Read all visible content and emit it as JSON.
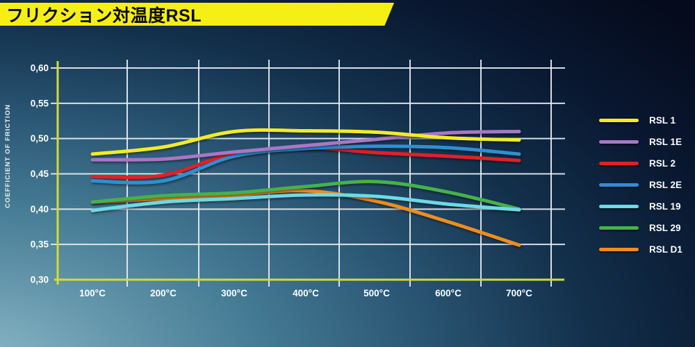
{
  "header": {
    "title": "フリクション対温度RSL"
  },
  "chart_data": {
    "type": "line",
    "title": "フリクション対温度RSL",
    "xlabel": "",
    "ylabel": "COEFFICIENT OF FRICTION",
    "x": [
      100,
      200,
      300,
      400,
      500,
      600,
      700
    ],
    "x_tick_labels": [
      "100°C",
      "200°C",
      "300°C",
      "400°C",
      "500°C",
      "600°C",
      "700°C"
    ],
    "y_ticks": [
      0.6,
      0.55,
      0.5,
      0.45,
      0.4,
      0.35,
      0.3
    ],
    "y_tick_labels": [
      "0,60",
      "0,55",
      "0,50",
      "0,45",
      "0,40",
      "0,35",
      "0,30"
    ],
    "ylim": [
      0.3,
      0.6
    ],
    "grid": "white gridlines, both axes",
    "legend_position": "right",
    "axis_color": "#d8dc2b",
    "series": [
      {
        "name": "RSL 1",
        "color": "#f2ec25",
        "values": [
          0.478,
          0.488,
          0.51,
          0.511,
          0.509,
          0.501,
          0.498
        ]
      },
      {
        "name": "RSL 1E",
        "color": "#a877c4",
        "values": [
          0.47,
          0.471,
          0.481,
          0.49,
          0.499,
          0.508,
          0.51
        ]
      },
      {
        "name": "RSL 2",
        "color": "#e0202a",
        "values": [
          0.446,
          0.448,
          0.479,
          0.487,
          0.48,
          0.475,
          0.469
        ]
      },
      {
        "name": "RSL 2E",
        "color": "#2e8fd4",
        "values": [
          0.44,
          0.44,
          0.475,
          0.486,
          0.489,
          0.487,
          0.478
        ]
      },
      {
        "name": "RSL 19",
        "color": "#6fd9e6",
        "values": [
          0.398,
          0.41,
          0.415,
          0.42,
          0.418,
          0.407,
          0.399
        ]
      },
      {
        "name": "RSL 29",
        "color": "#46b14c",
        "values": [
          0.41,
          0.419,
          0.423,
          0.432,
          0.439,
          0.424,
          0.4
        ]
      },
      {
        "name": "RSL D1",
        "color": "#ee8d21",
        "values": [
          0.41,
          0.415,
          0.42,
          0.426,
          0.411,
          0.382,
          0.349
        ]
      }
    ]
  }
}
